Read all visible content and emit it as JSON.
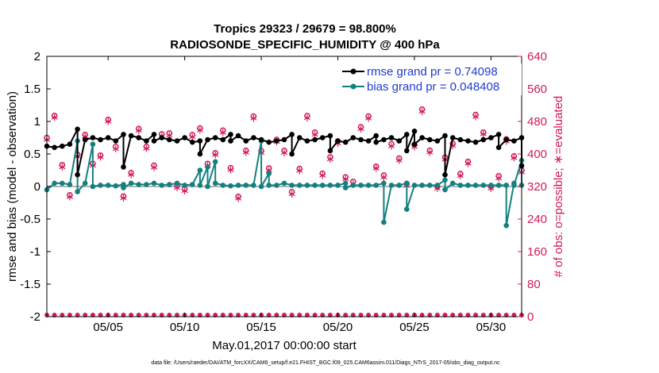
{
  "chart_data": {
    "type": "line",
    "title_line1": "Tropics 29323 / 29679 = 98.800%",
    "title_line2": "RADIOSONDE_SPECIFIC_HUMIDITY @ 400 hPa",
    "ylabel": "rmse and bias (model - observation)",
    "y2label": "# of obs: o=possible; ∗=evaluated",
    "xlabel": "May.01,2017 00:00:00 start",
    "footnote": "data file: /Users/raeder/DAI/ATM_forcXX/CAM6_setup/f.e21.FHIST_BGC.f09_025.CAM6assim.011/Diags_NTrS_2017-05/obs_diag_output.nc",
    "ylim": [
      -2,
      2
    ],
    "y2lim": [
      0,
      640
    ],
    "xlim": [
      1.0,
      32.0
    ],
    "yticks": [
      "-2",
      "-1.5",
      "-1",
      "-0.5",
      "0",
      "0.5",
      "1",
      "1.5",
      "2"
    ],
    "y2ticks": [
      "0",
      "80",
      "160",
      "240",
      "320",
      "400",
      "480",
      "560",
      "640"
    ],
    "xticks": [
      {
        "day": 5,
        "label": "05/05"
      },
      {
        "day": 10,
        "label": "05/10"
      },
      {
        "day": 15,
        "label": "05/15"
      },
      {
        "day": 20,
        "label": "05/20"
      },
      {
        "day": 25,
        "label": "05/25"
      },
      {
        "day": 30,
        "label": "05/30"
      }
    ],
    "legend": [
      {
        "label": "rmse grand pr = 0.74098",
        "color": "#000000"
      },
      {
        "label": "bias grand pr = 0.048408",
        "color": "#138080"
      }
    ],
    "colors": {
      "rmse": "#000000",
      "bias": "#138080",
      "counts": "#d01a5a",
      "zero": "#b4b4b4"
    },
    "rmse_high": [
      0.62,
      0.6,
      0.62,
      0.65,
      0.88,
      0.72,
      0.75,
      0.72,
      0.75,
      0.7,
      0.8,
      0.78,
      0.75,
      0.7,
      0.8,
      0.75,
      0.72,
      0.7,
      0.75,
      0.68,
      0.7,
      0.72,
      0.75,
      0.72,
      0.8,
      0.78,
      0.7,
      0.75,
      0.72,
      0.68,
      0.7,
      0.72,
      0.8,
      0.75,
      0.7,
      0.72,
      0.75,
      0.78,
      0.7,
      0.68,
      0.75,
      0.72,
      0.7,
      0.78,
      0.72,
      0.75,
      0.7,
      0.8,
      0.85,
      0.75,
      0.72,
      0.7,
      0.78,
      0.75,
      0.72,
      0.7,
      0.68,
      0.72,
      0.75,
      0.8,
      0.72,
      0.7,
      0.75
    ],
    "rmse_low": [
      0.62,
      0.6,
      0.62,
      0.65,
      0.18,
      0.72,
      0.75,
      0.72,
      0.75,
      0.7,
      0.3,
      0.78,
      0.75,
      0.7,
      0.7,
      0.75,
      0.72,
      0.7,
      0.75,
      0.68,
      0.5,
      0.72,
      0.75,
      0.72,
      0.7,
      0.78,
      0.7,
      0.75,
      0.72,
      0.68,
      0.7,
      0.72,
      0.5,
      0.75,
      0.7,
      0.72,
      0.75,
      0.55,
      0.7,
      0.68,
      0.75,
      0.72,
      0.7,
      0.68,
      0.72,
      0.75,
      0.7,
      0.55,
      0.65,
      0.75,
      0.72,
      0.7,
      0.18,
      0.75,
      0.72,
      0.7,
      0.68,
      0.72,
      0.75,
      0.6,
      0.72,
      0.7,
      0.32
    ],
    "bias_high": [
      -0.05,
      0.05,
      0.05,
      0.03,
      0.7,
      0.05,
      0.65,
      0.02,
      0.02,
      0.01,
      0.03,
      0.05,
      0.03,
      0.03,
      0.05,
      0.02,
      0.03,
      0.05,
      0.02,
      0.03,
      0.25,
      0.3,
      0.38,
      0.02,
      0.01,
      0.02,
      0.02,
      0.02,
      0.7,
      0.2,
      0.02,
      0.05,
      0.02,
      0.02,
      0.02,
      0.02,
      0.02,
      0.02,
      0.02,
      0.05,
      0.02,
      0.02,
      0.02,
      0.02,
      0.05,
      0.02,
      0.02,
      0.05,
      0.02,
      0.02,
      0.02,
      0.02,
      0.1,
      0.05,
      0.02,
      0.02,
      0.02,
      0.02,
      0.02,
      0.02,
      0.02,
      0.05,
      0.4
    ],
    "bias_low": [
      -0.05,
      0.05,
      0.05,
      0.03,
      -0.08,
      0.05,
      0.0,
      0.02,
      0.02,
      0.01,
      -0.02,
      0.05,
      0.03,
      0.03,
      0.05,
      0.02,
      0.03,
      0.05,
      0.02,
      0.03,
      0.02,
      0.0,
      0.05,
      0.02,
      0.01,
      0.02,
      0.02,
      0.02,
      0.0,
      0.02,
      0.02,
      0.05,
      0.02,
      0.02,
      0.02,
      0.02,
      0.02,
      0.02,
      0.02,
      -0.02,
      0.02,
      0.02,
      0.02,
      0.02,
      -0.55,
      0.02,
      0.02,
      -0.35,
      0.02,
      0.02,
      0.02,
      0.02,
      -0.05,
      0.05,
      0.02,
      0.02,
      0.02,
      0.02,
      0.02,
      0.02,
      -0.6,
      0.02,
      0.02
    ]
  }
}
